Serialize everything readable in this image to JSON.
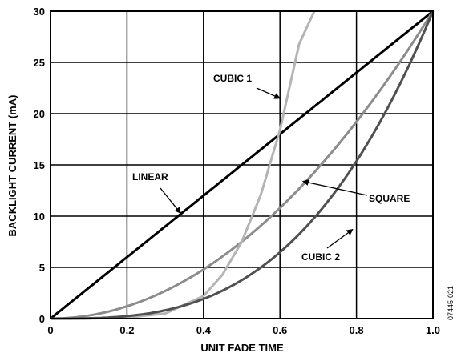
{
  "chart_data": {
    "type": "line",
    "xlabel": "UNIT FADE TIME",
    "ylabel": "BACKLIGHT CURRENT (mA)",
    "xlim": [
      0,
      1.0
    ],
    "ylim": [
      0,
      30
    ],
    "grid": true,
    "x_ticks": [
      "0",
      "0.2",
      "0.4",
      "0.6",
      "0.8",
      "1.0"
    ],
    "y_ticks": [
      "0",
      "5",
      "10",
      "15",
      "20",
      "25",
      "30"
    ],
    "series": [
      {
        "name": "LINEAR",
        "color": "#000000",
        "x": [
          0,
          0.1,
          0.2,
          0.3,
          0.4,
          0.5,
          0.6,
          0.7,
          0.8,
          0.9,
          1.0
        ],
        "values": [
          0,
          3,
          6,
          9,
          12,
          15,
          18,
          21,
          24,
          27,
          30
        ]
      },
      {
        "name": "SQUARE",
        "color": "#8c8c8c",
        "x": [
          0,
          0.1,
          0.2,
          0.3,
          0.4,
          0.5,
          0.6,
          0.7,
          0.8,
          0.9,
          1.0
        ],
        "values": [
          0,
          0.3,
          1.2,
          2.7,
          4.8,
          7.5,
          10.8,
          14.7,
          19.2,
          24.3,
          30
        ]
      },
      {
        "name": "CUBIC 1",
        "color": "#b4b4b4",
        "x": [
          0,
          0.1,
          0.2,
          0.3,
          0.4,
          0.45,
          0.5,
          0.55,
          0.6,
          0.65,
          0.69
        ],
        "values": [
          0,
          0.01,
          0.1,
          0.5,
          2.2,
          4.3,
          7.5,
          12.1,
          18.4,
          26.8,
          30
        ]
      },
      {
        "name": "CUBIC 2",
        "color": "#505050",
        "x": [
          0,
          0.1,
          0.2,
          0.3,
          0.4,
          0.5,
          0.6,
          0.7,
          0.8,
          0.9,
          1.0
        ],
        "values": [
          0,
          0.03,
          0.24,
          0.81,
          1.92,
          3.75,
          6.48,
          10.3,
          15.4,
          21.9,
          30
        ]
      }
    ],
    "annotations": [
      {
        "text": "LINEAR",
        "target": [
          0.34,
          10.3
        ]
      },
      {
        "text": "SQUARE",
        "target": [
          0.66,
          13.4
        ]
      },
      {
        "text": "CUBIC 1",
        "target": [
          0.6,
          21.5
        ]
      },
      {
        "text": "CUBIC 2",
        "target": [
          0.79,
          8.7
        ]
      }
    ]
  },
  "figure_id": "07445-021"
}
